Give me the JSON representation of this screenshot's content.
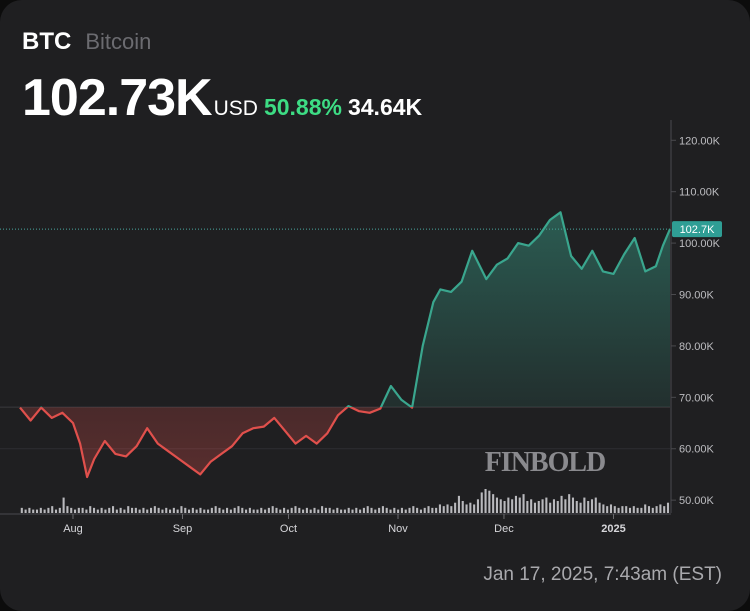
{
  "header": {
    "symbol": "BTC",
    "name": "Bitcoin",
    "price": "102.73K",
    "currency": "USD",
    "change_pct": "50.88%",
    "change_abs": "34.64K"
  },
  "timestamp": "Jan 17, 2025, 7:43am (EST)",
  "watermark": "FINBOLD",
  "colors": {
    "background": "#1f1f21",
    "up": "#3aa68e",
    "down": "#e0504c",
    "accent_green": "#3ddc84"
  },
  "chart_data": {
    "type": "line",
    "title": "",
    "xlabel": "",
    "ylabel": "",
    "ylim": [
      47500,
      122000
    ],
    "y_ticks": [
      "120.00K",
      "110.00K",
      "100.00K",
      "90.00K",
      "80.00K",
      "70.00K",
      "60.00K",
      "50.00K"
    ],
    "y_tick_values": [
      120000,
      110000,
      100000,
      90000,
      80000,
      70000,
      60000,
      50000
    ],
    "x_ticks": [
      "Aug",
      "Sep",
      "Oct",
      "Nov",
      "Dec",
      "2025"
    ],
    "x_tick_dates": [
      "2024-08-01",
      "2024-09-01",
      "2024-10-01",
      "2024-11-01",
      "2024-12-01",
      "2025-01-01"
    ],
    "x_range": [
      "2024-07-17",
      "2025-01-17"
    ],
    "baseline": 68090,
    "current_value": 102730,
    "current_label": "102.7K",
    "grid": false,
    "series": [
      {
        "x": [
          "2024-07-17",
          "2024-07-20",
          "2024-07-23",
          "2024-07-26",
          "2024-07-29",
          "2024-08-01",
          "2024-08-03",
          "2024-08-05",
          "2024-08-07",
          "2024-08-10",
          "2024-08-13",
          "2024-08-16",
          "2024-08-19",
          "2024-08-22",
          "2024-08-25",
          "2024-08-28",
          "2024-08-31",
          "2024-09-03",
          "2024-09-06",
          "2024-09-09",
          "2024-09-12",
          "2024-09-15",
          "2024-09-18",
          "2024-09-21",
          "2024-09-24",
          "2024-09-27",
          "2024-09-30",
          "2024-10-03",
          "2024-10-06",
          "2024-10-09",
          "2024-10-12",
          "2024-10-15",
          "2024-10-18",
          "2024-10-21",
          "2024-10-24",
          "2024-10-27",
          "2024-10-30",
          "2024-11-02",
          "2024-11-05",
          "2024-11-08",
          "2024-11-11",
          "2024-11-13",
          "2024-11-16",
          "2024-11-19",
          "2024-11-22",
          "2024-11-26",
          "2024-11-29",
          "2024-12-02",
          "2024-12-05",
          "2024-12-08",
          "2024-12-11",
          "2024-12-14",
          "2024-12-17",
          "2024-12-20",
          "2024-12-23",
          "2024-12-26",
          "2024-12-29",
          "2025-01-01",
          "2025-01-04",
          "2025-01-07",
          "2025-01-10",
          "2025-01-13",
          "2025-01-15",
          "2025-01-17"
        ],
        "values": [
          68000,
          65500,
          68000,
          66000,
          67000,
          65000,
          61000,
          54500,
          58000,
          61500,
          59000,
          58500,
          60500,
          64000,
          61000,
          59500,
          58000,
          56500,
          55000,
          57500,
          59000,
          60500,
          63000,
          64000,
          64300,
          66000,
          63500,
          61000,
          62500,
          61000,
          63000,
          66500,
          68300,
          67300,
          67000,
          67800,
          72200,
          69500,
          68000,
          80000,
          88500,
          91000,
          90500,
          92500,
          98500,
          93000,
          95800,
          97000,
          100000,
          99500,
          101500,
          104500,
          106000,
          97500,
          95000,
          98500,
          94500,
          94000,
          97800,
          101000,
          94500,
          95500,
          99500,
          102730
        ]
      }
    ],
    "volume": {
      "x_range": [
        "2024-07-17",
        "2025-01-17"
      ],
      "values": [
        3,
        2,
        3,
        2,
        2,
        3,
        2,
        3,
        4,
        2,
        3,
        9,
        4,
        3,
        2,
        3,
        3,
        2,
        4,
        3,
        2,
        3,
        2,
        3,
        4,
        2,
        3,
        2,
        4,
        3,
        3,
        2,
        3,
        2,
        3,
        4,
        3,
        2,
        3,
        2,
        3,
        2,
        4,
        3,
        2,
        3,
        2,
        3,
        2,
        2,
        3,
        4,
        3,
        2,
        3,
        2,
        3,
        4,
        3,
        2,
        3,
        2,
        2,
        3,
        2,
        3,
        4,
        3,
        2,
        3,
        2,
        3,
        4,
        3,
        2,
        3,
        2,
        3,
        2,
        4,
        3,
        3,
        2,
        3,
        2,
        2,
        3,
        2,
        3,
        2,
        3,
        4,
        3,
        2,
        3,
        4,
        3,
        2,
        3,
        2,
        3,
        2,
        3,
        4,
        3,
        2,
        3,
        4,
        3,
        3,
        5,
        4,
        5,
        4,
        6,
        10,
        7,
        5,
        6,
        5,
        8,
        12,
        14,
        13,
        11,
        9,
        8,
        7,
        9,
        8,
        10,
        9,
        11,
        7,
        8,
        6,
        7,
        8,
        9,
        6,
        8,
        7,
        10,
        8,
        11,
        9,
        7,
        6,
        9,
        7,
        8,
        9,
        6,
        5,
        4,
        5,
        4,
        3,
        4,
        4,
        3,
        4,
        3,
        3,
        5,
        4,
        3,
        4,
        5,
        4,
        6
      ]
    }
  }
}
